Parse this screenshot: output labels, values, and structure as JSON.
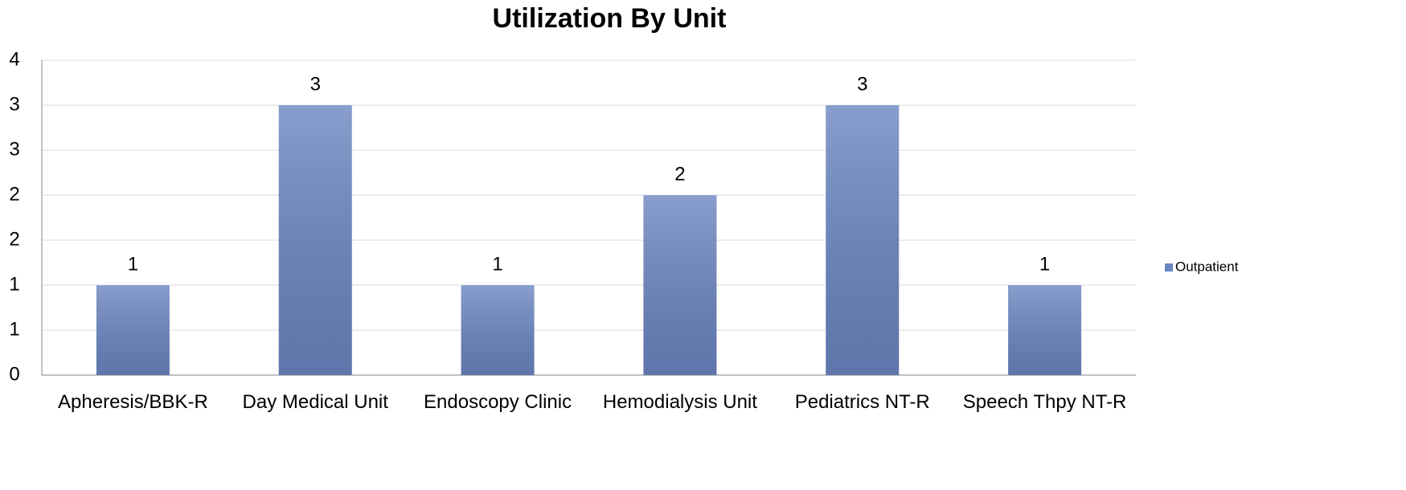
{
  "chart_data": {
    "type": "bar",
    "title": "Utilization By Unit",
    "categories": [
      "Apheresis/BBK-R",
      "Day Medical Unit",
      "Endoscopy Clinic",
      "Hemodialysis Unit",
      "Pediatrics NT-R",
      "Speech Thpy NT-R"
    ],
    "series": [
      {
        "name": "Outpatient",
        "color": "#6b86c2",
        "values": [
          1,
          3,
          1,
          2,
          3,
          1
        ]
      }
    ],
    "ylim": [
      0,
      3.5
    ],
    "yticks": [
      0,
      {
        "value": 0.5,
        "label": "1"
      },
      1,
      {
        "value": 1.5,
        "label": "2"
      },
      2,
      {
        "value": 2.5,
        "label": "3"
      },
      3,
      {
        "value": 3.5,
        "label": "4"
      }
    ],
    "grid": true,
    "legend": "right"
  }
}
